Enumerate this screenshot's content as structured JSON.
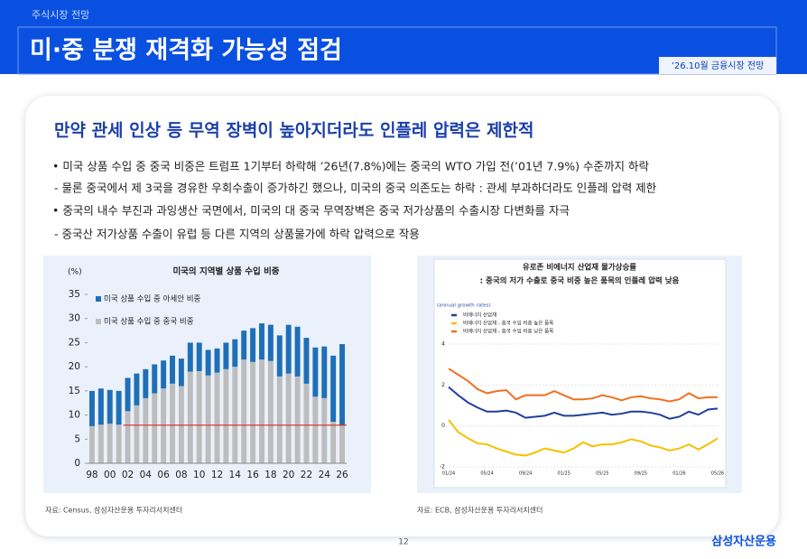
{
  "header": {
    "section": "주식시장 전망",
    "title": "미·중 분쟁 재격화 가능성 점검",
    "tag": "’26.10월 금융시장 전망"
  },
  "headline": "만약 관세 인상 등 무역 장벽이 높아지더라도 인플레 압력은 제한적",
  "bullets": [
    "• 미국 상품 수입 중 중국 비중은 트럼프 1기부터 하락해 ’26년(7.8%)에는 중국의 WTO 가입 전(’01년 7.9%) 수준까지 하락",
    "- 물론 중국에서 제 3국을 경유한 우회수출이 증가하긴 했으나, 미국의 중국 의존도는 하락 : 관세 부과하더라도 인플레 압력 제한",
    "• 중국의 내수 부진과 과잉생산 국면에서, 미국의 대 중국 무역장벽은 중국 저가상품의 수출시장 다변화를 자극",
    "- 중국산 저가상품 수출이 유럽 등 다른 지역의 상품물가에 하락 압력으로 작용"
  ],
  "chart_data": [
    {
      "type": "bar",
      "stacked": true,
      "title": "미국의 지역별 상품 수입 비중",
      "y_label": "(%)",
      "categories": [
        "98",
        null,
        "00",
        null,
        "02",
        null,
        "04",
        null,
        "06",
        null,
        "08",
        null,
        "10",
        null,
        "12",
        null,
        "14",
        null,
        "16",
        null,
        "18",
        null,
        "20",
        null,
        "22",
        null,
        "24",
        null,
        "26"
      ],
      "series": [
        {
          "name": "미국 상품 수입 중 아세안 비중",
          "color": "#1f6fb8",
          "values": [
            7.3,
            7.5,
            7.0,
            7.0,
            6.9,
            6.6,
            6.0,
            6.0,
            5.8,
            5.8,
            5.7,
            6.0,
            5.9,
            5.3,
            5.0,
            5.5,
            5.7,
            6.0,
            7.0,
            7.5,
            7.5,
            8.5,
            10.1,
            10.3,
            9.5,
            10.2,
            10.7,
            13.7,
            16.9
          ]
        },
        {
          "name": "미국 상품 수입 중 중국 비중",
          "color": "#bdbdbd",
          "values": [
            7.7,
            8.0,
            8.2,
            8.0,
            10.8,
            12.0,
            13.5,
            14.5,
            15.5,
            16.5,
            16.0,
            19.0,
            19.1,
            18.2,
            18.8,
            19.5,
            20.0,
            21.5,
            21.0,
            21.5,
            21.2,
            18.0,
            18.6,
            18.0,
            16.5,
            13.8,
            13.5,
            8.6,
            7.8
          ]
        }
      ],
      "reference_line": {
        "value": 7.9,
        "color": "#e02828"
      },
      "ylim": [
        0,
        35
      ],
      "yticks": [
        0,
        5,
        10,
        15,
        20,
        25,
        30,
        35
      ]
    },
    {
      "type": "line",
      "title": "유로존 비에너지 산업재 물가상승률",
      "subtitle": ": 중국의 저가 수출로 중국 비중 높은 품목의 인플레 압력 낮음",
      "y_label": "(annual growth rates)",
      "categories": [
        "01/24",
        null,
        null,
        null,
        "05/24",
        null,
        null,
        null,
        "09/24",
        null,
        null,
        null,
        "01/25",
        null,
        null,
        null,
        "05/25",
        null,
        null,
        null,
        "09/25",
        null,
        null,
        null,
        "01/26",
        null,
        null,
        null,
        "05/26"
      ],
      "series": [
        {
          "name": "비에너지 산업재",
          "color": "#1f3f9a",
          "values": [
            1.9,
            1.5,
            1.15,
            0.9,
            0.7,
            0.7,
            0.75,
            0.65,
            0.4,
            0.45,
            0.5,
            0.65,
            0.5,
            0.5,
            0.55,
            0.6,
            0.65,
            0.55,
            0.6,
            0.7,
            0.7,
            0.65,
            0.55,
            0.35,
            0.45,
            0.7,
            0.55,
            0.8,
            0.85
          ]
        },
        {
          "name": "비에너지 산업재 - 중국 수입 비중 높은 품목",
          "color": "#f5c000",
          "values": [
            0.3,
            -0.3,
            -0.6,
            -0.85,
            -0.9,
            -1.1,
            -1.25,
            -1.4,
            -1.45,
            -1.3,
            -1.1,
            -1.2,
            -1.3,
            -1.1,
            -0.8,
            -1.0,
            -0.9,
            -0.9,
            -0.8,
            -0.65,
            -0.75,
            -0.95,
            -1.05,
            -1.2,
            -1.1,
            -0.9,
            -1.15,
            -0.9,
            -0.6
          ]
        },
        {
          "name": "비에너지 산업재 - 중국 수입 비중 낮은 품목",
          "color": "#f07020",
          "values": [
            2.8,
            2.5,
            2.2,
            1.8,
            1.6,
            1.7,
            1.75,
            1.3,
            1.5,
            1.5,
            1.5,
            1.7,
            1.5,
            1.3,
            1.3,
            1.35,
            1.5,
            1.4,
            1.25,
            1.4,
            1.45,
            1.35,
            1.3,
            1.2,
            1.3,
            1.6,
            1.35,
            1.4,
            1.4
          ]
        }
      ],
      "ylim": [
        -2,
        4
      ],
      "yticks": [
        -2,
        0,
        2,
        4
      ]
    }
  ],
  "sources": [
    "자료: Census, 삼성자산운용 투자리서치센터",
    "자료: ECB, 삼성자산운용 투자리서치센터"
  ],
  "page_number": "12",
  "logo": "삼성자산운용"
}
